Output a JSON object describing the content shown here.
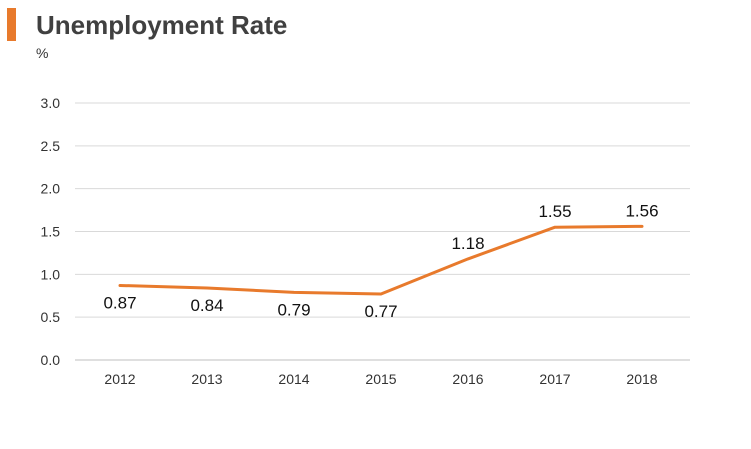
{
  "header": {
    "title": "Unemployment Rate",
    "unit": "%",
    "accent_color": "#e87a2c"
  },
  "chart_data": {
    "type": "line",
    "title": "Unemployment Rate",
    "ylabel": "%",
    "xlabel": "",
    "categories": [
      "2012",
      "2013",
      "2014",
      "2015",
      "2016",
      "2017",
      "2018"
    ],
    "series": [
      {
        "values": [
          0.87,
          0.84,
          0.79,
          0.77,
          1.18,
          1.55,
          1.56
        ],
        "color": "#e87a2c"
      }
    ],
    "data_labels": [
      "0.87",
      "0.84",
      "0.79",
      "0.77",
      "1.18",
      "1.55",
      "1.56"
    ],
    "ylim": [
      0,
      3.0
    ],
    "yticks": [
      0.0,
      0.5,
      1.0,
      1.5,
      2.0,
      2.5,
      3.0
    ],
    "ytick_labels": [
      "0.0",
      "0.5",
      "1.0",
      "1.5",
      "2.0",
      "2.5",
      "3.0"
    ],
    "grid": true,
    "legend": "none"
  }
}
